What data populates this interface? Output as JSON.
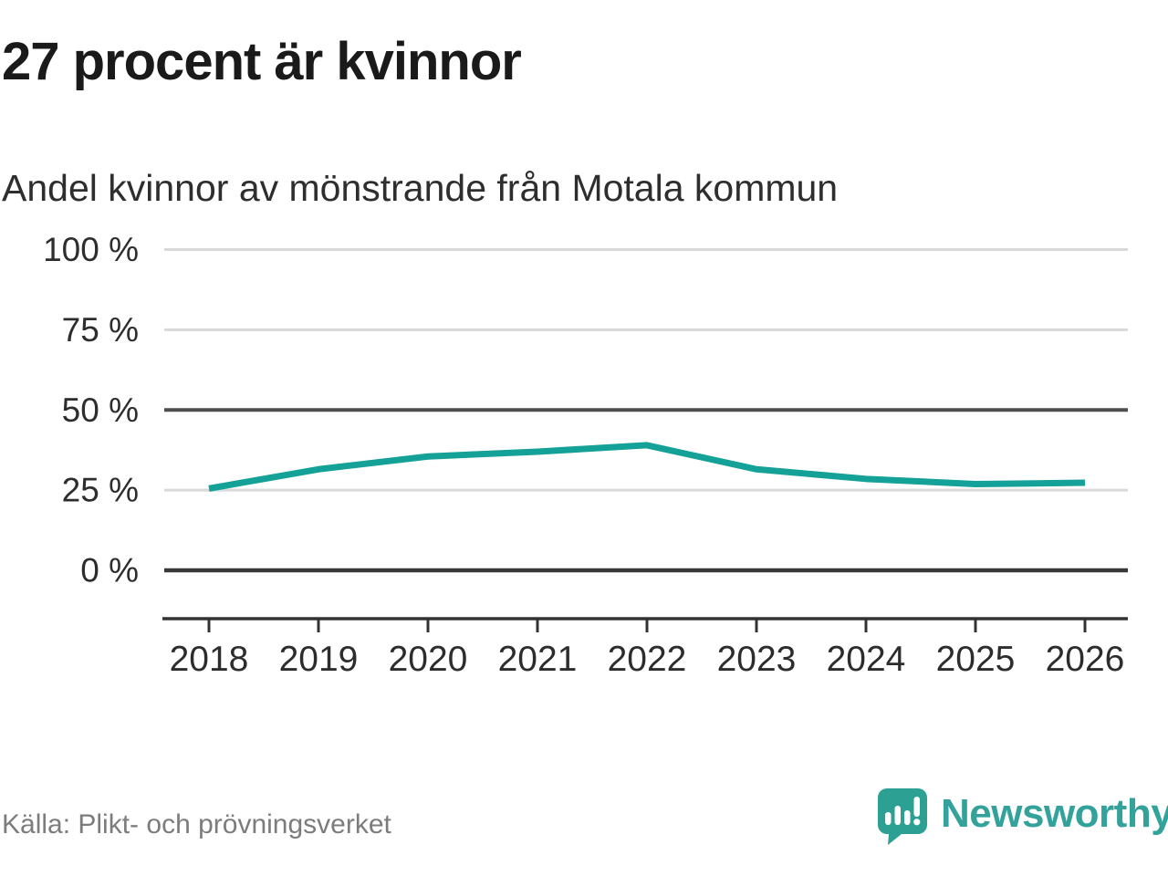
{
  "header": {
    "title": "27 procent är kvinnor",
    "subtitle": "Andel kvinnor av mönstrande från Motala kommun"
  },
  "chart_data": {
    "type": "line",
    "title": "27 procent är kvinnor",
    "subtitle": "Andel kvinnor av mönstrande från Motala kommun",
    "x": [
      2018,
      2019,
      2020,
      2021,
      2022,
      2023,
      2024,
      2025,
      2026
    ],
    "series": [
      {
        "name": "Andel kvinnor av mönstrande",
        "color": "#14a197",
        "values": [
          25.5,
          31.5,
          35.5,
          37,
          39,
          31.5,
          28.5,
          26.9,
          27.3
        ]
      }
    ],
    "ylim": [
      0,
      100
    ],
    "y_ticks": [
      {
        "value": 0,
        "label": "0 %"
      },
      {
        "value": 25,
        "label": "25 %"
      },
      {
        "value": 50,
        "label": "50 %"
      },
      {
        "value": 75,
        "label": "75 %"
      },
      {
        "value": 100,
        "label": "100 %"
      }
    ],
    "grid": true,
    "legend": false,
    "emphasized_gridlines": [
      0,
      50
    ]
  },
  "footer": {
    "source": "Källa: Plikt- och prövningsverket",
    "brand": "Newsworthy"
  },
  "colors": {
    "accent": "#14a197",
    "logo": "#2da094",
    "grid_light": "#d9d9d9",
    "grid_mid": "#4e4e4e",
    "grid_dark": "#383838",
    "axis": "#333333",
    "tick_text": "#2d2d2d",
    "source_text": "#7c7c7c"
  }
}
